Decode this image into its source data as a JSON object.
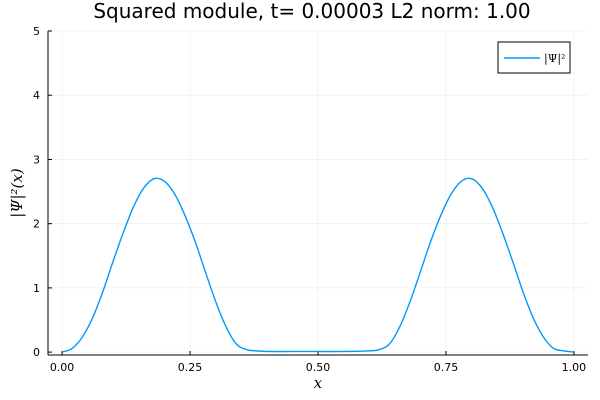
{
  "chart_data": {
    "type": "line",
    "title": "Squared module, t= 0.00003 L2 norm: 1.00",
    "xlabel": "x",
    "ylabel": "|Ψ|²(x)",
    "xlim": [
      0.0,
      1.0
    ],
    "ylim": [
      0,
      5
    ],
    "x_ticks": [
      "0.00",
      "0.25",
      "0.50",
      "0.75",
      "1.00"
    ],
    "y_ticks": [
      "0",
      "1",
      "2",
      "3",
      "4",
      "5"
    ],
    "grid": true,
    "legend_position": "top-right",
    "series": [
      {
        "name": "|Ψ|²",
        "color": "#009AFA",
        "x": [
          0.0,
          0.02,
          0.04,
          0.06,
          0.08,
          0.1,
          0.12,
          0.14,
          0.16,
          0.18,
          0.2,
          0.22,
          0.24,
          0.26,
          0.28,
          0.3,
          0.32,
          0.34,
          0.36,
          0.38,
          0.4,
          0.45,
          0.5,
          0.55,
          0.6,
          0.62,
          0.64,
          0.66,
          0.68,
          0.7,
          0.72,
          0.74,
          0.76,
          0.78,
          0.8,
          0.82,
          0.84,
          0.86,
          0.88,
          0.9,
          0.92,
          0.94,
          0.96,
          0.98,
          1.0
        ],
        "y": [
          0.0,
          0.06,
          0.24,
          0.54,
          0.95,
          1.42,
          1.87,
          2.27,
          2.56,
          2.7,
          2.66,
          2.46,
          2.13,
          1.72,
          1.25,
          0.79,
          0.4,
          0.13,
          0.04,
          0.02,
          0.01,
          0.01,
          0.01,
          0.01,
          0.02,
          0.04,
          0.13,
          0.4,
          0.79,
          1.25,
          1.72,
          2.13,
          2.46,
          2.66,
          2.7,
          2.56,
          2.27,
          1.87,
          1.42,
          0.95,
          0.54,
          0.24,
          0.06,
          0.02,
          0.0
        ]
      }
    ]
  }
}
